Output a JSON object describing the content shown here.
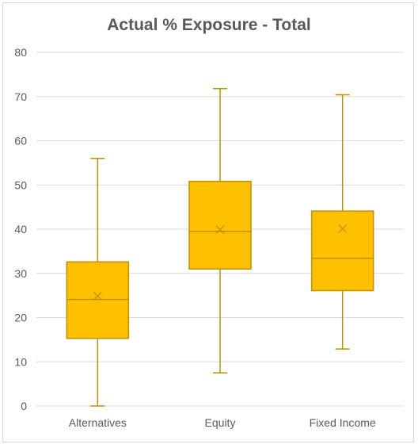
{
  "chart_data": {
    "type": "boxplot",
    "title": "Actual % Exposure - Total",
    "xlabel": "",
    "ylabel": "",
    "ylim": [
      0,
      80
    ],
    "yticks": [
      "0",
      "10",
      "20",
      "30",
      "40",
      "50",
      "60",
      "70",
      "80"
    ],
    "grid": true,
    "legend": "none",
    "categories": [
      "Alternatives",
      "Equity",
      "Fixed Income"
    ],
    "boxes": [
      {
        "category": "Alternatives",
        "min": 0,
        "q1": 15.3,
        "median": 24.1,
        "mean": 24.9,
        "q3": 32.6,
        "max": 56.0
      },
      {
        "category": "Equity",
        "min": 7.5,
        "q1": 31.0,
        "median": 39.5,
        "mean": 39.9,
        "q3": 50.8,
        "max": 71.8
      },
      {
        "category": "Fixed Income",
        "min": 12.9,
        "q1": 26.1,
        "median": 33.4,
        "mean": 40.1,
        "q3": 44.1,
        "max": 70.4
      }
    ],
    "colors": {
      "box_fill": "#FFC000",
      "box_stroke": "#BF9000",
      "grid": "#d9d9d9",
      "text": "#595959"
    }
  }
}
